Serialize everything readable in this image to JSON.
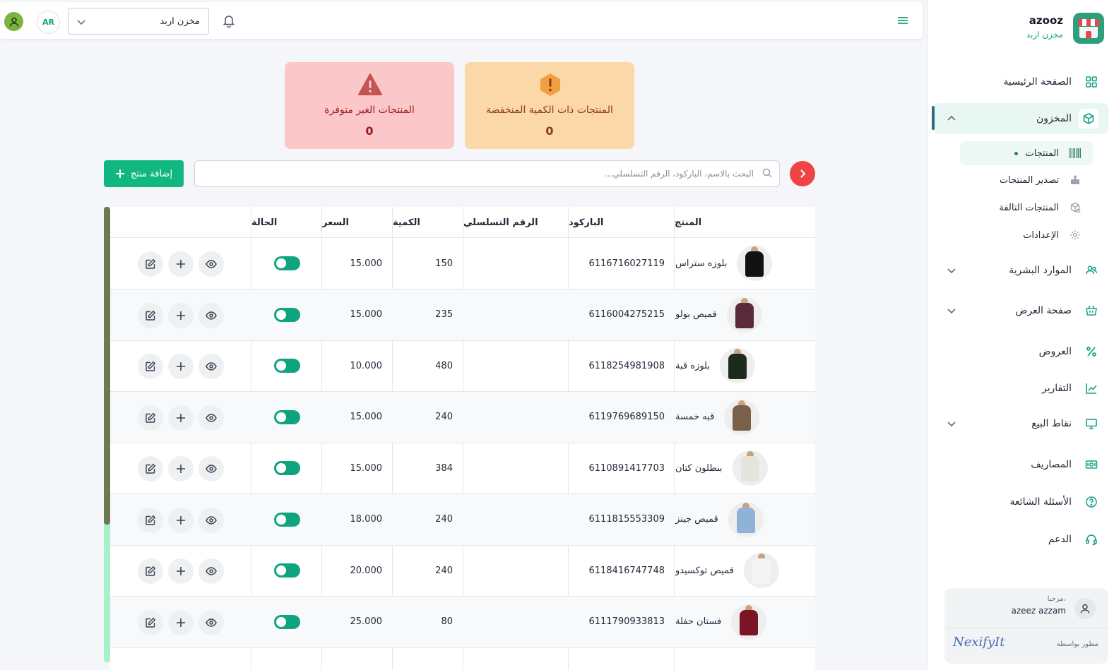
{
  "sidebar": {
    "brand_name": "azooz",
    "brand_sub": "مخزن اربد",
    "items": {
      "home": "الصفحة الرئيسية",
      "inventory": "المخزون",
      "hr": "الموارد البشرية",
      "storefront": "صفحة العرض",
      "offers": "العروض",
      "reports": "التقارير",
      "pos": "نقاط البيع",
      "expenses": "المصاريف",
      "faq": "الأسئلة الشائعة",
      "support": "الدعم"
    },
    "sub_items": {
      "products": "المنتجات",
      "export": "تصدير المنتجات",
      "damaged": "المنتجات التالفة",
      "settings": "الإعدادات"
    },
    "user": {
      "greeting": "مرحبا،",
      "name": "azeez azzam",
      "developed_by": "مطور بواسطة",
      "dev_logo": "NexifyIt"
    }
  },
  "topbar": {
    "store_select": "مخزن اربد",
    "lang": "AR"
  },
  "stats": {
    "low_label": "المنتجات ذات الكمية المنخفضة",
    "low_value": "0",
    "out_label": "المنتجات الغير متوفرة",
    "out_value": "0"
  },
  "search": {
    "placeholder": "البحث بالاسم، الباركود، الرقم التسلسلي..."
  },
  "add_button": "إضافة منتج",
  "table": {
    "headers": {
      "product": "المنتج",
      "barcode": "الباركود",
      "serial": "الرقم التسلسلي",
      "quantity": "الكمية",
      "price": "السعر",
      "status": "الحالة"
    },
    "rows": [
      {
        "name": "بلوزه ستراس",
        "barcode": "6116716027119",
        "serial": "",
        "quantity": "150",
        "price": "15.000",
        "active": true,
        "color": "#111111"
      },
      {
        "name": "قميص بولو",
        "barcode": "6116004275215",
        "serial": "",
        "quantity": "235",
        "price": "15.000",
        "active": true,
        "color": "#5a2a3a"
      },
      {
        "name": "بلوزه قبة",
        "barcode": "6118254981908",
        "serial": "",
        "quantity": "480",
        "price": "10.000",
        "active": true,
        "color": "#1d2b1f"
      },
      {
        "name": "قبه خمسة",
        "barcode": "6119769689150",
        "serial": "",
        "quantity": "240",
        "price": "15.000",
        "active": true,
        "color": "#7a6048"
      },
      {
        "name": "بنطلون كتان",
        "barcode": "6110891417703",
        "serial": "",
        "quantity": "384",
        "price": "15.000",
        "active": true,
        "color": "#e6e4de"
      },
      {
        "name": "قميص جينز",
        "barcode": "6111815553309",
        "serial": "",
        "quantity": "240",
        "price": "18.000",
        "active": true,
        "color": "#8fb3d6"
      },
      {
        "name": "قميص توكسيدو",
        "barcode": "6118416747748",
        "serial": "",
        "quantity": "240",
        "price": "20.000",
        "active": true,
        "color": "#f4f4f4"
      },
      {
        "name": "فستان حفلة",
        "barcode": "6111790933813",
        "serial": "",
        "quantity": "80",
        "price": "25.000",
        "active": true,
        "color": "#7b1424"
      }
    ]
  },
  "colors": {
    "accent": "#10a37f",
    "danger": "#ef4444",
    "low_stock_bg": "#fcd7a8",
    "out_stock_bg": "#fcc7c9"
  }
}
